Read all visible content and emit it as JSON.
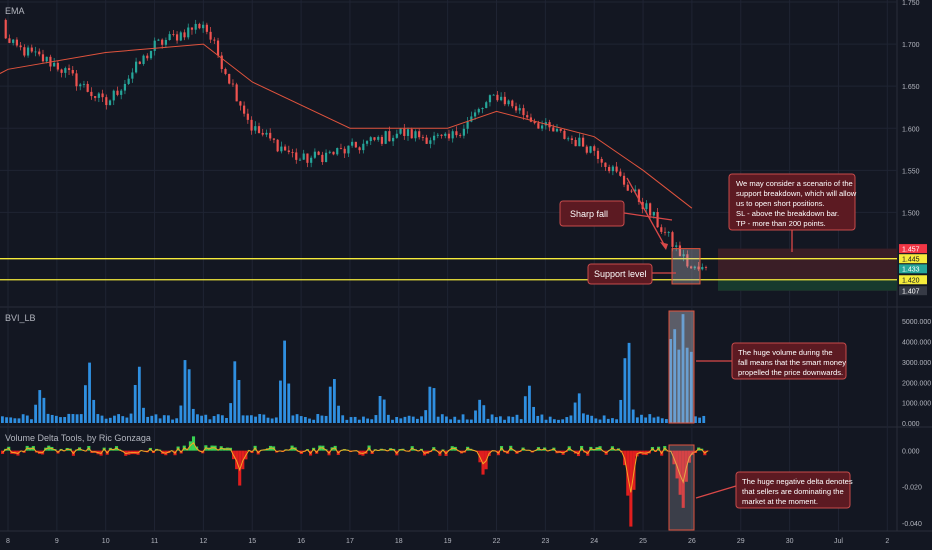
{
  "panes": {
    "price": {
      "label": "EMA"
    },
    "volume": {
      "label": "BVI_LB"
    },
    "delta": {
      "label": "Volume Delta Tools, by Ric Gonzaga"
    }
  },
  "annotations": {
    "sharp_fall": "Sharp fall",
    "support_level": "Support level",
    "scenario": [
      "We may consider a scenario of the",
      "support breakdown, which will allow",
      "us to open short positions.",
      "SL - above the breakdown bar.",
      "TP - more than 200 points."
    ],
    "volume_note": [
      "The huge volume during the",
      "fall means that the smart money",
      "propelled the price downwards."
    ],
    "delta_note": [
      "The huge negative delta denotes",
      "that sellers are dominating the",
      "market at the moment."
    ]
  },
  "price_tags": [
    {
      "value": "1.457",
      "color": "#f23645",
      "text_color": "#ffffff"
    },
    {
      "value": "1.445",
      "color": "#f5eb3b",
      "text_color": "#131722"
    },
    {
      "value": "1.433",
      "color": "#26a69a",
      "text_color": "#ffffff"
    },
    {
      "value": "1.420",
      "color": "#f5eb3b",
      "text_color": "#131722"
    },
    {
      "value": "1.407",
      "color": "#363a45",
      "text_color": "#ffffff"
    }
  ],
  "colors": {
    "background": "#131722",
    "grid": "#1f2433",
    "up": "#26a69a",
    "down": "#ef5350",
    "ema": "#e0533d",
    "support": "#f5eb3b",
    "volume": "#2f8fe0",
    "delta_pos": "#39d353",
    "delta_neg": "#e01e1e",
    "delta_line": "#f5a623",
    "note_bg": "#5c1a22",
    "note_border": "#c74b4b",
    "axis_text": "#b2b5be",
    "zone": "#3a1e26",
    "zone_green": "#173a2e"
  },
  "chart_data": [
    {
      "type": "candlestick",
      "title": "EMA",
      "y_ticks": [
        "1.750",
        "1.700",
        "1.650",
        "1.600",
        "1.550",
        "1.500"
      ],
      "ylim": [
        1.39,
        1.75
      ],
      "x_ticks": [
        "8",
        "9",
        "10",
        "11",
        "12",
        "15",
        "16",
        "17",
        "18",
        "19",
        "22",
        "23",
        "24",
        "25",
        "26",
        "29",
        "30",
        "Jul",
        "2"
      ],
      "key_points": [
        {
          "x": "8",
          "close": 1.7
        },
        {
          "x": "9",
          "close": 1.675
        },
        {
          "x": "10",
          "close": 1.628
        },
        {
          "x": "11",
          "close": 1.698
        },
        {
          "x": "12",
          "close": 1.725
        },
        {
          "x": "15",
          "close": 1.6
        },
        {
          "x": "16",
          "close": 1.562
        },
        {
          "x": "17",
          "close": 1.575
        },
        {
          "x": "18",
          "close": 1.595
        },
        {
          "x": "19",
          "close": 1.585
        },
        {
          "x": "22",
          "close": 1.64
        },
        {
          "x": "23",
          "close": 1.6
        },
        {
          "x": "24",
          "close": 1.575
        },
        {
          "x": "25",
          "close": 1.51
        },
        {
          "x": "26",
          "close": 1.432
        }
      ],
      "ema_key_points": [
        {
          "x": "8",
          "value": 1.67
        },
        {
          "x": "10",
          "value": 1.69
        },
        {
          "x": "12",
          "value": 1.7
        },
        {
          "x": "15",
          "value": 1.655
        },
        {
          "x": "17",
          "value": 1.6
        },
        {
          "x": "19",
          "value": 1.6
        },
        {
          "x": "22",
          "value": 1.62
        },
        {
          "x": "24",
          "value": 1.59
        },
        {
          "x": "25",
          "value": 1.55
        },
        {
          "x": "26",
          "value": 1.505
        }
      ],
      "support_levels": [
        1.445,
        1.42
      ],
      "zone": {
        "from": 1.407,
        "to": 1.457
      }
    },
    {
      "type": "bar",
      "title": "BVI_LB",
      "y_ticks": [
        "5000.000",
        "4000.000",
        "3000.000",
        "2000.000",
        "1000.000",
        "0.000"
      ],
      "ylim": [
        0,
        5600
      ],
      "peaks": [
        {
          "x": "8",
          "value": 2400
        },
        {
          "x": "9",
          "value": 2500
        },
        {
          "x": "10",
          "value": 3400
        },
        {
          "x": "11",
          "value": 3000
        },
        {
          "x": "12",
          "value": 4200
        },
        {
          "x": "15",
          "value": 3300
        },
        {
          "x": "16",
          "value": 5200
        },
        {
          "x": "17",
          "value": 2700
        },
        {
          "x": "18",
          "value": 1900
        },
        {
          "x": "19",
          "value": 2500
        },
        {
          "x": "22",
          "value": 1700
        },
        {
          "x": "23",
          "value": 2200
        },
        {
          "x": "24",
          "value": 1900
        },
        {
          "x": "25",
          "value": 5300
        }
      ]
    },
    {
      "type": "area",
      "title": "Volume Delta Tools, by Ric Gonzaga",
      "y_ticks": [
        "0.000",
        "-0.020",
        "-0.040"
      ],
      "ylim": [
        -0.044,
        0.012
      ],
      "extremes": [
        {
          "x": "12",
          "value": 0.008
        },
        {
          "x": "15",
          "value": -0.018
        },
        {
          "x": "22",
          "value": -0.015
        },
        {
          "x": "25",
          "value": -0.042
        }
      ]
    }
  ]
}
